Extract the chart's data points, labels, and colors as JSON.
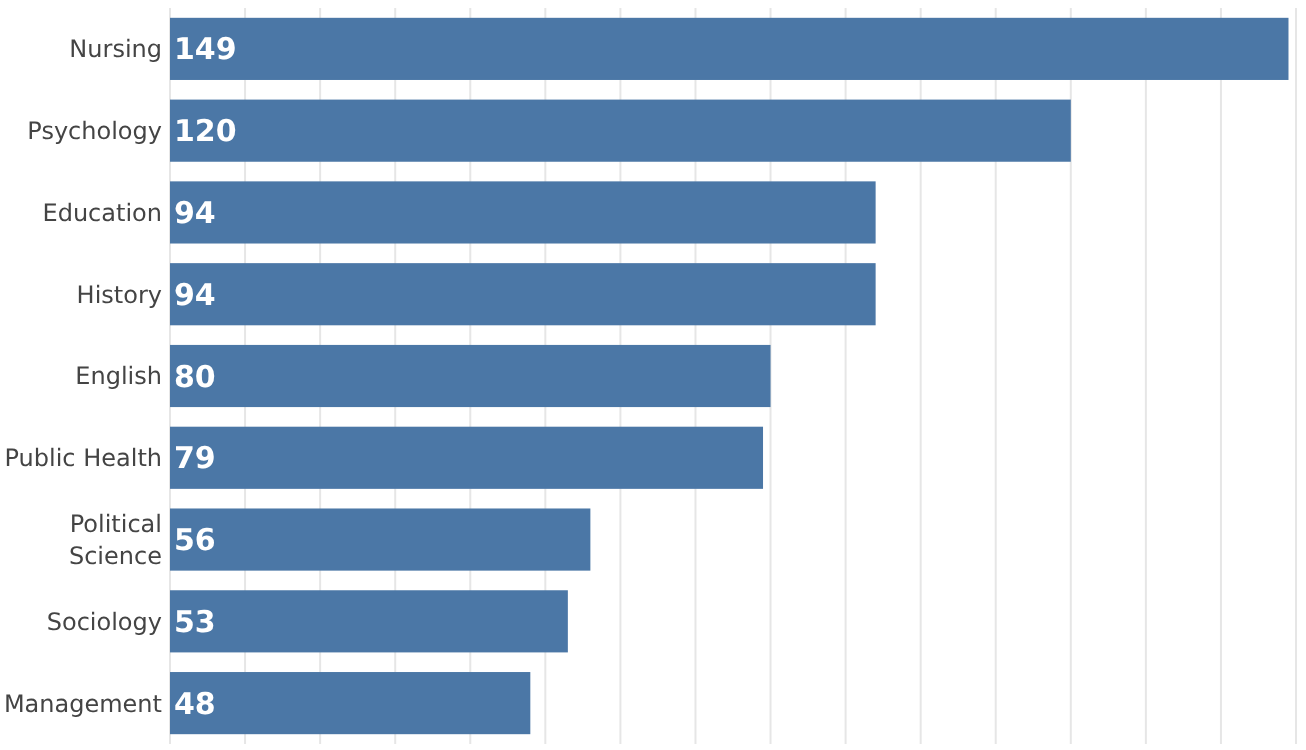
{
  "chart_data": {
    "type": "bar",
    "orientation": "horizontal",
    "categories": [
      "Nursing",
      "Psychology",
      "Education",
      "History",
      "English",
      "Public Health",
      "Political Science",
      "Sociology",
      "Management"
    ],
    "values": [
      149,
      120,
      94,
      94,
      80,
      79,
      56,
      53,
      48
    ],
    "color": "#4b77a6",
    "xlim": [
      0,
      150
    ],
    "xticks": [
      {
        "value": 0,
        "label": null
      },
      {
        "value": 10,
        "label": null
      },
      {
        "value": 20,
        "label": null
      },
      {
        "value": 30,
        "label": null
      },
      {
        "value": 40,
        "label": null
      },
      {
        "value": 50,
        "label": null
      },
      {
        "value": 60,
        "label": null
      },
      {
        "value": 70,
        "label": null
      },
      {
        "value": 80,
        "label": null
      },
      {
        "value": 90,
        "label": null
      },
      {
        "value": 100,
        "label": null
      },
      {
        "value": 110,
        "label": null
      },
      {
        "value": 120,
        "label": null
      },
      {
        "value": 130,
        "label": null
      },
      {
        "value": 140,
        "label": null
      },
      {
        "value": 150,
        "label": null
      }
    ],
    "grid": "x",
    "tick_labels": "y",
    "data_labels": true
  }
}
